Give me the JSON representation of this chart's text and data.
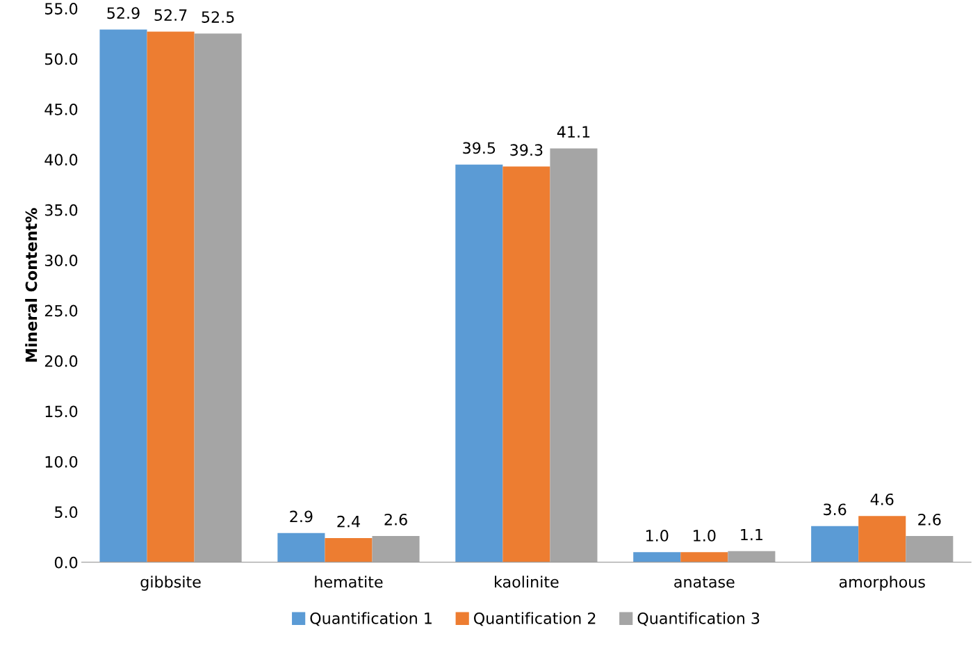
{
  "chart_data": {
    "type": "bar",
    "ylabel": "Mineral Content%",
    "categories": [
      "gibbsite",
      "hematite",
      "kaolinite",
      "anatase",
      "amorphous"
    ],
    "series": [
      {
        "name": "Quantification 1",
        "color": "#5b9bd5",
        "values": [
          52.9,
          2.9,
          39.5,
          1.0,
          3.6
        ],
        "value_labels": [
          "52.9",
          "2.9",
          "39.5",
          "1.0",
          "3.6"
        ]
      },
      {
        "name": "Quantification 2",
        "color": "#ed7d31",
        "values": [
          52.7,
          2.4,
          39.3,
          1.0,
          4.6
        ],
        "value_labels": [
          "52.7",
          "2.4",
          "39.3",
          "1.0",
          "4.6"
        ]
      },
      {
        "name": "Quantification 3",
        "color": "#a5a5a5",
        "values": [
          52.5,
          2.6,
          41.1,
          1.1,
          2.6
        ],
        "value_labels": [
          "52.5",
          "2.6",
          "41.1",
          "1.1",
          "2.6"
        ]
      }
    ],
    "ylim": [
      0,
      55
    ],
    "yticks": [
      {
        "value": 0,
        "label": "0.0"
      },
      {
        "value": 5,
        "label": "5.0"
      },
      {
        "value": 10,
        "label": "10.0"
      },
      {
        "value": 15,
        "label": "15.0"
      },
      {
        "value": 20,
        "label": "20.0"
      },
      {
        "value": 25,
        "label": "25.0"
      },
      {
        "value": 30,
        "label": "30.0"
      },
      {
        "value": 35,
        "label": "35.0"
      },
      {
        "value": 40,
        "label": "40.0"
      },
      {
        "value": 45,
        "label": "45.0"
      },
      {
        "value": 50,
        "label": "50.0"
      },
      {
        "value": 55,
        "label": "55.0"
      }
    ],
    "grid": false,
    "legend": "bottom"
  }
}
